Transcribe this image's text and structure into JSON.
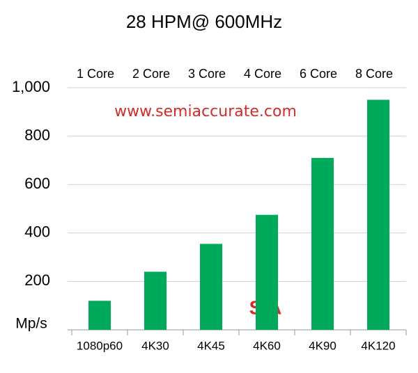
{
  "chart_data": {
    "type": "bar",
    "title": "28 HPM@ 600MHz",
    "categories": [
      "1080p60",
      "4K30",
      "4K45",
      "4K60",
      "4K90",
      "4K120"
    ],
    "core_labels": [
      "1 Core",
      "2 Core",
      "3 Core",
      "4 Core",
      "6 Core",
      "8 Core"
    ],
    "values": [
      120,
      240,
      355,
      475,
      710,
      950
    ],
    "color": "#00aa5a",
    "ylim": [
      0,
      1000
    ],
    "yticks": [
      200,
      400,
      600,
      800,
      {
        "value": 1000,
        "label": "1,000"
      }
    ],
    "y_label": "Mp/s",
    "grid": true,
    "watermark": "www.semiaccurate.com",
    "logo": "S|A"
  }
}
